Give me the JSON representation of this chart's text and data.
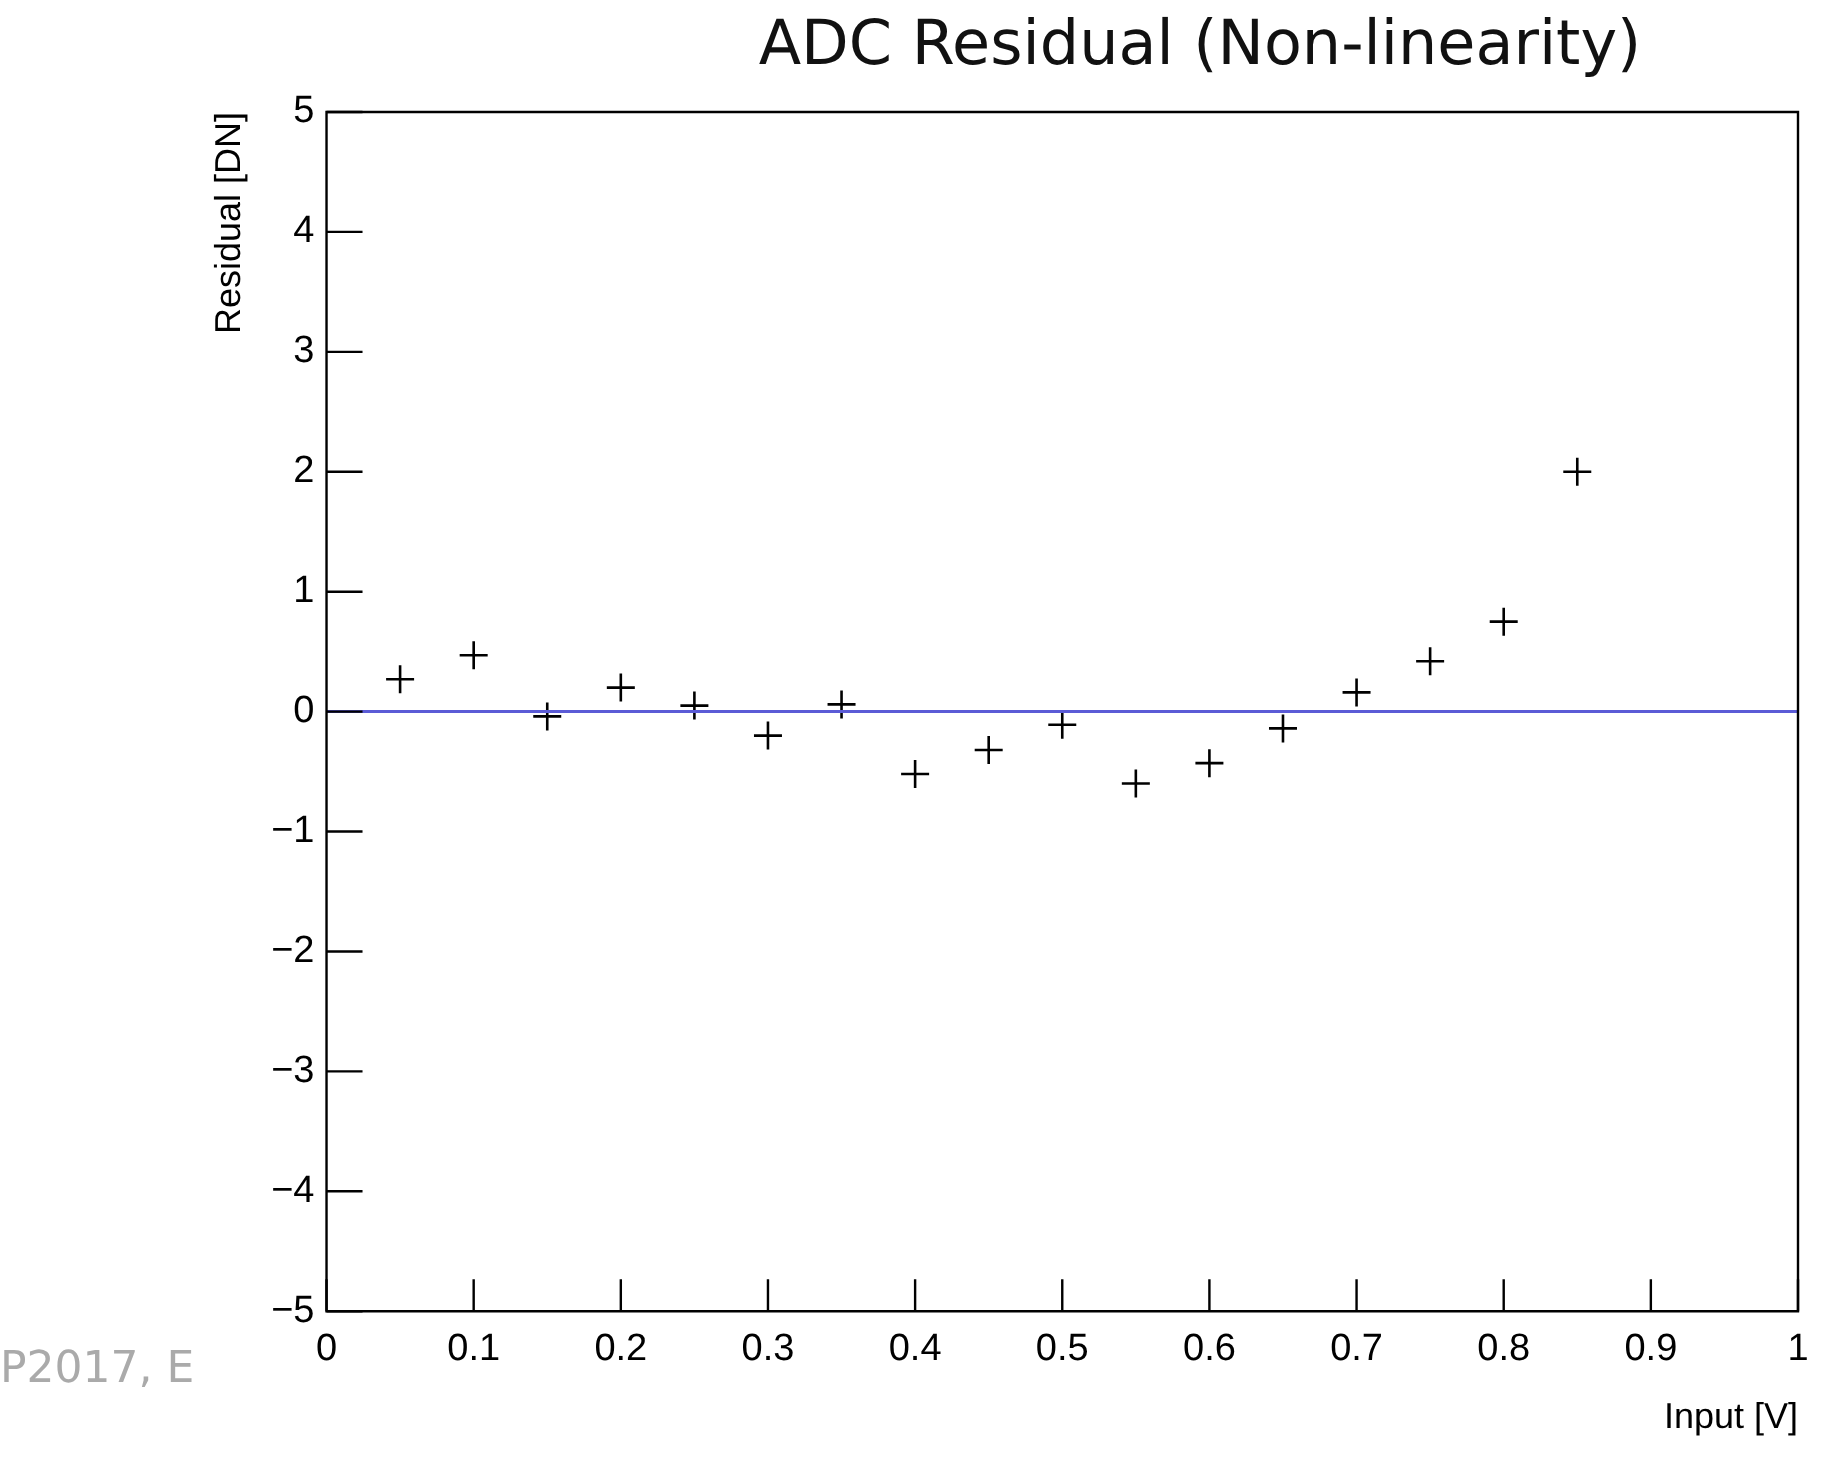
{
  "chart_data": {
    "type": "scatter",
    "title": "ADC Residual (Non-linearity)",
    "xlabel": "Input [V]",
    "ylabel": "Residual [DN]",
    "x": [
      0.05,
      0.1,
      0.15,
      0.2,
      0.25,
      0.3,
      0.35,
      0.4,
      0.45,
      0.5,
      0.55,
      0.6,
      0.65,
      0.7,
      0.75,
      0.8,
      0.85
    ],
    "series": [
      {
        "color": "#000000",
        "values": [
          0.27,
          0.47,
          -0.04,
          0.2,
          0.05,
          -0.2,
          0.06,
          -0.52,
          -0.32,
          -0.11,
          -0.6,
          -0.43,
          -0.14,
          0.16,
          0.42,
          0.75,
          2.0
        ]
      }
    ],
    "marker": "cross",
    "xlim": [
      0,
      1
    ],
    "xticks": [
      0,
      0.1,
      0.2,
      0.3,
      0.4,
      0.5,
      0.6,
      0.7,
      0.8,
      0.9,
      1
    ],
    "ylim": [
      -5,
      5
    ],
    "yticks": [
      -5,
      -4,
      -3,
      -2,
      -1,
      0,
      1,
      2,
      3,
      4,
      5
    ],
    "ref_lines": [
      {
        "axis": "y",
        "value": 0,
        "color": "#5b5bd6"
      }
    ],
    "grid": false,
    "legend": false,
    "annotations": [
      "P2017, E"
    ]
  }
}
